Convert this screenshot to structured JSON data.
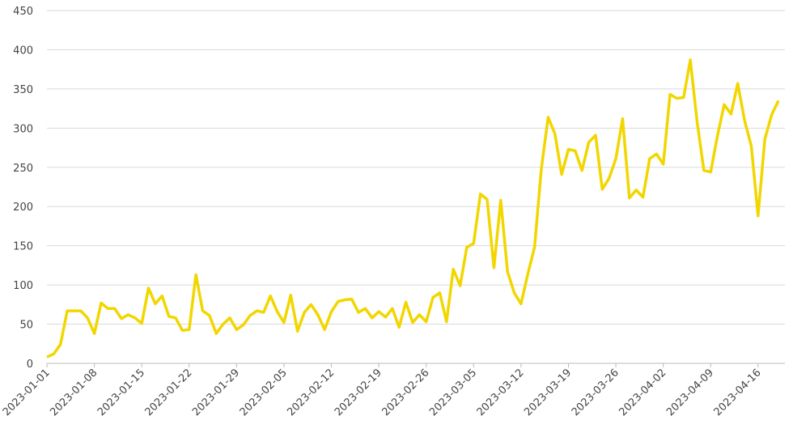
{
  "chart_data": {
    "type": "line",
    "title": "",
    "xlabel": "",
    "ylabel": "",
    "x_start": "2023-01-01",
    "x_step_days": 1,
    "ylim": [
      0,
      450
    ],
    "yticks": [
      0,
      50,
      100,
      150,
      200,
      250,
      300,
      350,
      400,
      450
    ],
    "ytick_labels": [
      "0",
      "50",
      "100",
      "150",
      "200",
      "250",
      "300",
      "350",
      "400",
      "450"
    ],
    "xtick_labels": [
      "2023-01-01",
      "2023-01-08",
      "2023-01-15",
      "2023-01-22",
      "2023-01-29",
      "2023-02-05",
      "2023-02-12",
      "2023-02-19",
      "2023-02-26",
      "2023-03-05",
      "2023-03-12",
      "2023-03-19",
      "2023-03-26",
      "2023-04-02",
      "2023-04-09",
      "2023-04-16"
    ],
    "grid": "horizontal",
    "line_color": "#f2d600",
    "values": [
      8,
      12,
      24,
      67,
      67,
      67,
      58,
      38,
      77,
      70,
      70,
      57,
      62,
      58,
      51,
      96,
      76,
      86,
      60,
      58,
      42,
      43,
      113,
      67,
      61,
      38,
      50,
      58,
      43,
      49,
      61,
      67,
      65,
      86,
      66,
      52,
      87,
      41,
      65,
      75,
      62,
      43,
      66,
      79,
      81,
      82,
      65,
      70,
      58,
      66,
      59,
      70,
      46,
      78,
      52,
      62,
      53,
      84,
      90,
      53,
      120,
      99,
      148,
      153,
      216,
      209,
      122,
      208,
      117,
      90,
      76,
      114,
      148,
      248,
      314,
      293,
      241,
      273,
      271,
      246,
      282,
      291,
      222,
      236,
      261,
      312,
      211,
      221,
      212,
      261,
      267,
      254,
      343,
      338,
      339,
      387,
      308,
      246,
      244,
      290,
      330,
      318,
      357,
      310,
      277,
      188,
      286,
      317,
      335
    ]
  }
}
